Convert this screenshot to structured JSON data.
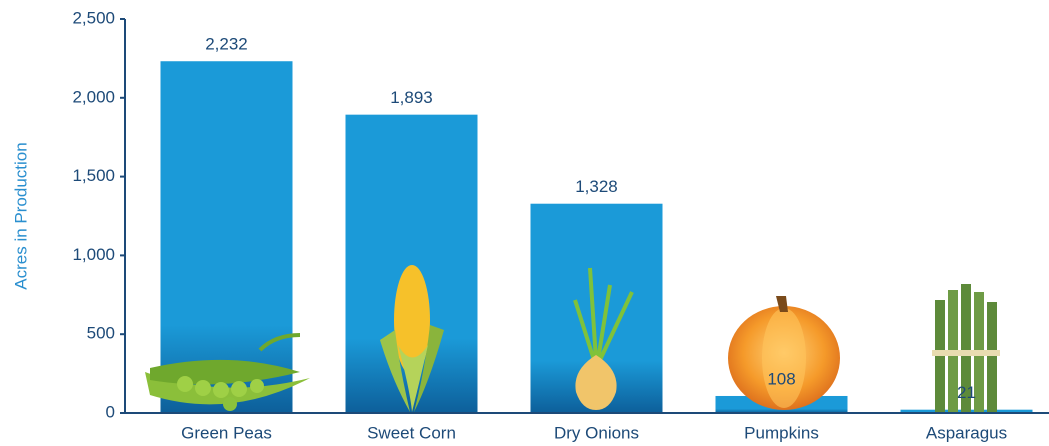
{
  "chart_data": {
    "type": "bar",
    "y_label": "Acres in Production",
    "categories": [
      "Green Peas",
      "Sweet Corn",
      "Dry Onions",
      "Pumpkins",
      "Asparagus"
    ],
    "values": [
      2232,
      1893,
      1328,
      108,
      21
    ],
    "value_labels": [
      "2,232",
      "1,893",
      "1,328",
      "108",
      "21"
    ],
    "color": "#1b9ad8",
    "ylim": [
      0,
      2500
    ],
    "yticks": [
      0,
      500,
      {
        "value": 1000,
        "label": "1,000"
      },
      {
        "value": 1500,
        "label": "1,500"
      },
      {
        "value": 2000,
        "label": "2,000"
      },
      {
        "value": 2500,
        "label": "2,500"
      }
    ]
  }
}
